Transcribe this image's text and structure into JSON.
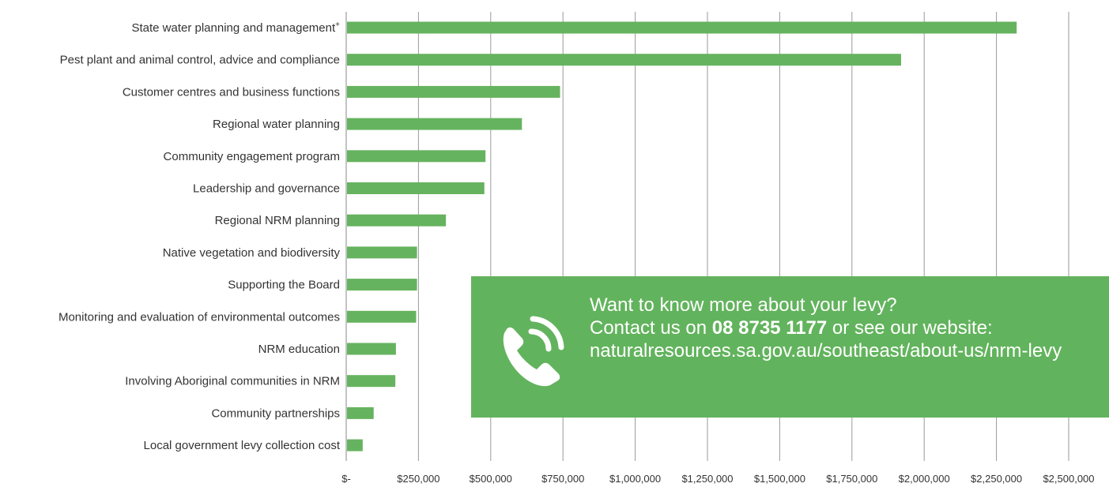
{
  "chart_data": {
    "type": "bar",
    "orientation": "horizontal",
    "title": "",
    "xlabel": "",
    "ylabel": "",
    "xlim": [
      0,
      2500000
    ],
    "grid": "vertical",
    "bar_color": "#66b35f",
    "categories": [
      "State water planning and management",
      "Pest plant and animal control, advice and compliance",
      "Customer centres and business functions",
      "Regional water planning",
      "Community engagement program",
      "Leadership and governance",
      "Regional NRM planning",
      "Native vegetation and biodiversity",
      "Supporting the Board",
      "Monitoring and evaluation of environmental outcomes",
      "NRM education",
      "Involving Aboriginal communities in NRM",
      "Community partnerships",
      "Local government levy collection cost"
    ],
    "category_superscripts": [
      "+",
      "",
      "",
      "",
      "",
      "",
      "",
      "",
      "",
      "",
      "",
      "",
      "",
      ""
    ],
    "values": [
      2320000,
      1920000,
      740000,
      608000,
      482000,
      478000,
      345000,
      245000,
      245000,
      242000,
      172000,
      170000,
      95000,
      57000
    ],
    "x_ticks": [
      0,
      250000,
      500000,
      750000,
      1000000,
      1250000,
      1500000,
      1750000,
      2000000,
      2250000,
      2500000
    ],
    "x_tick_labels": [
      "$-",
      "$250,000",
      "$500,000",
      "$750,000",
      "$1,000,000",
      "$1,250,000",
      "$1,500,000",
      "$1,750,000",
      "$2,000,000",
      "$2,250,000",
      "$2,500,000"
    ]
  },
  "banner": {
    "line1": "Want to know more about your levy?",
    "line2_prefix": "Contact us on ",
    "phone": "08 8735 1177",
    "line2_suffix": " or see our website:",
    "url": "naturalresources.sa.gov.au/southeast/about-us/nrm-levy",
    "icon": "phone-icon",
    "background": "#62b35d"
  }
}
